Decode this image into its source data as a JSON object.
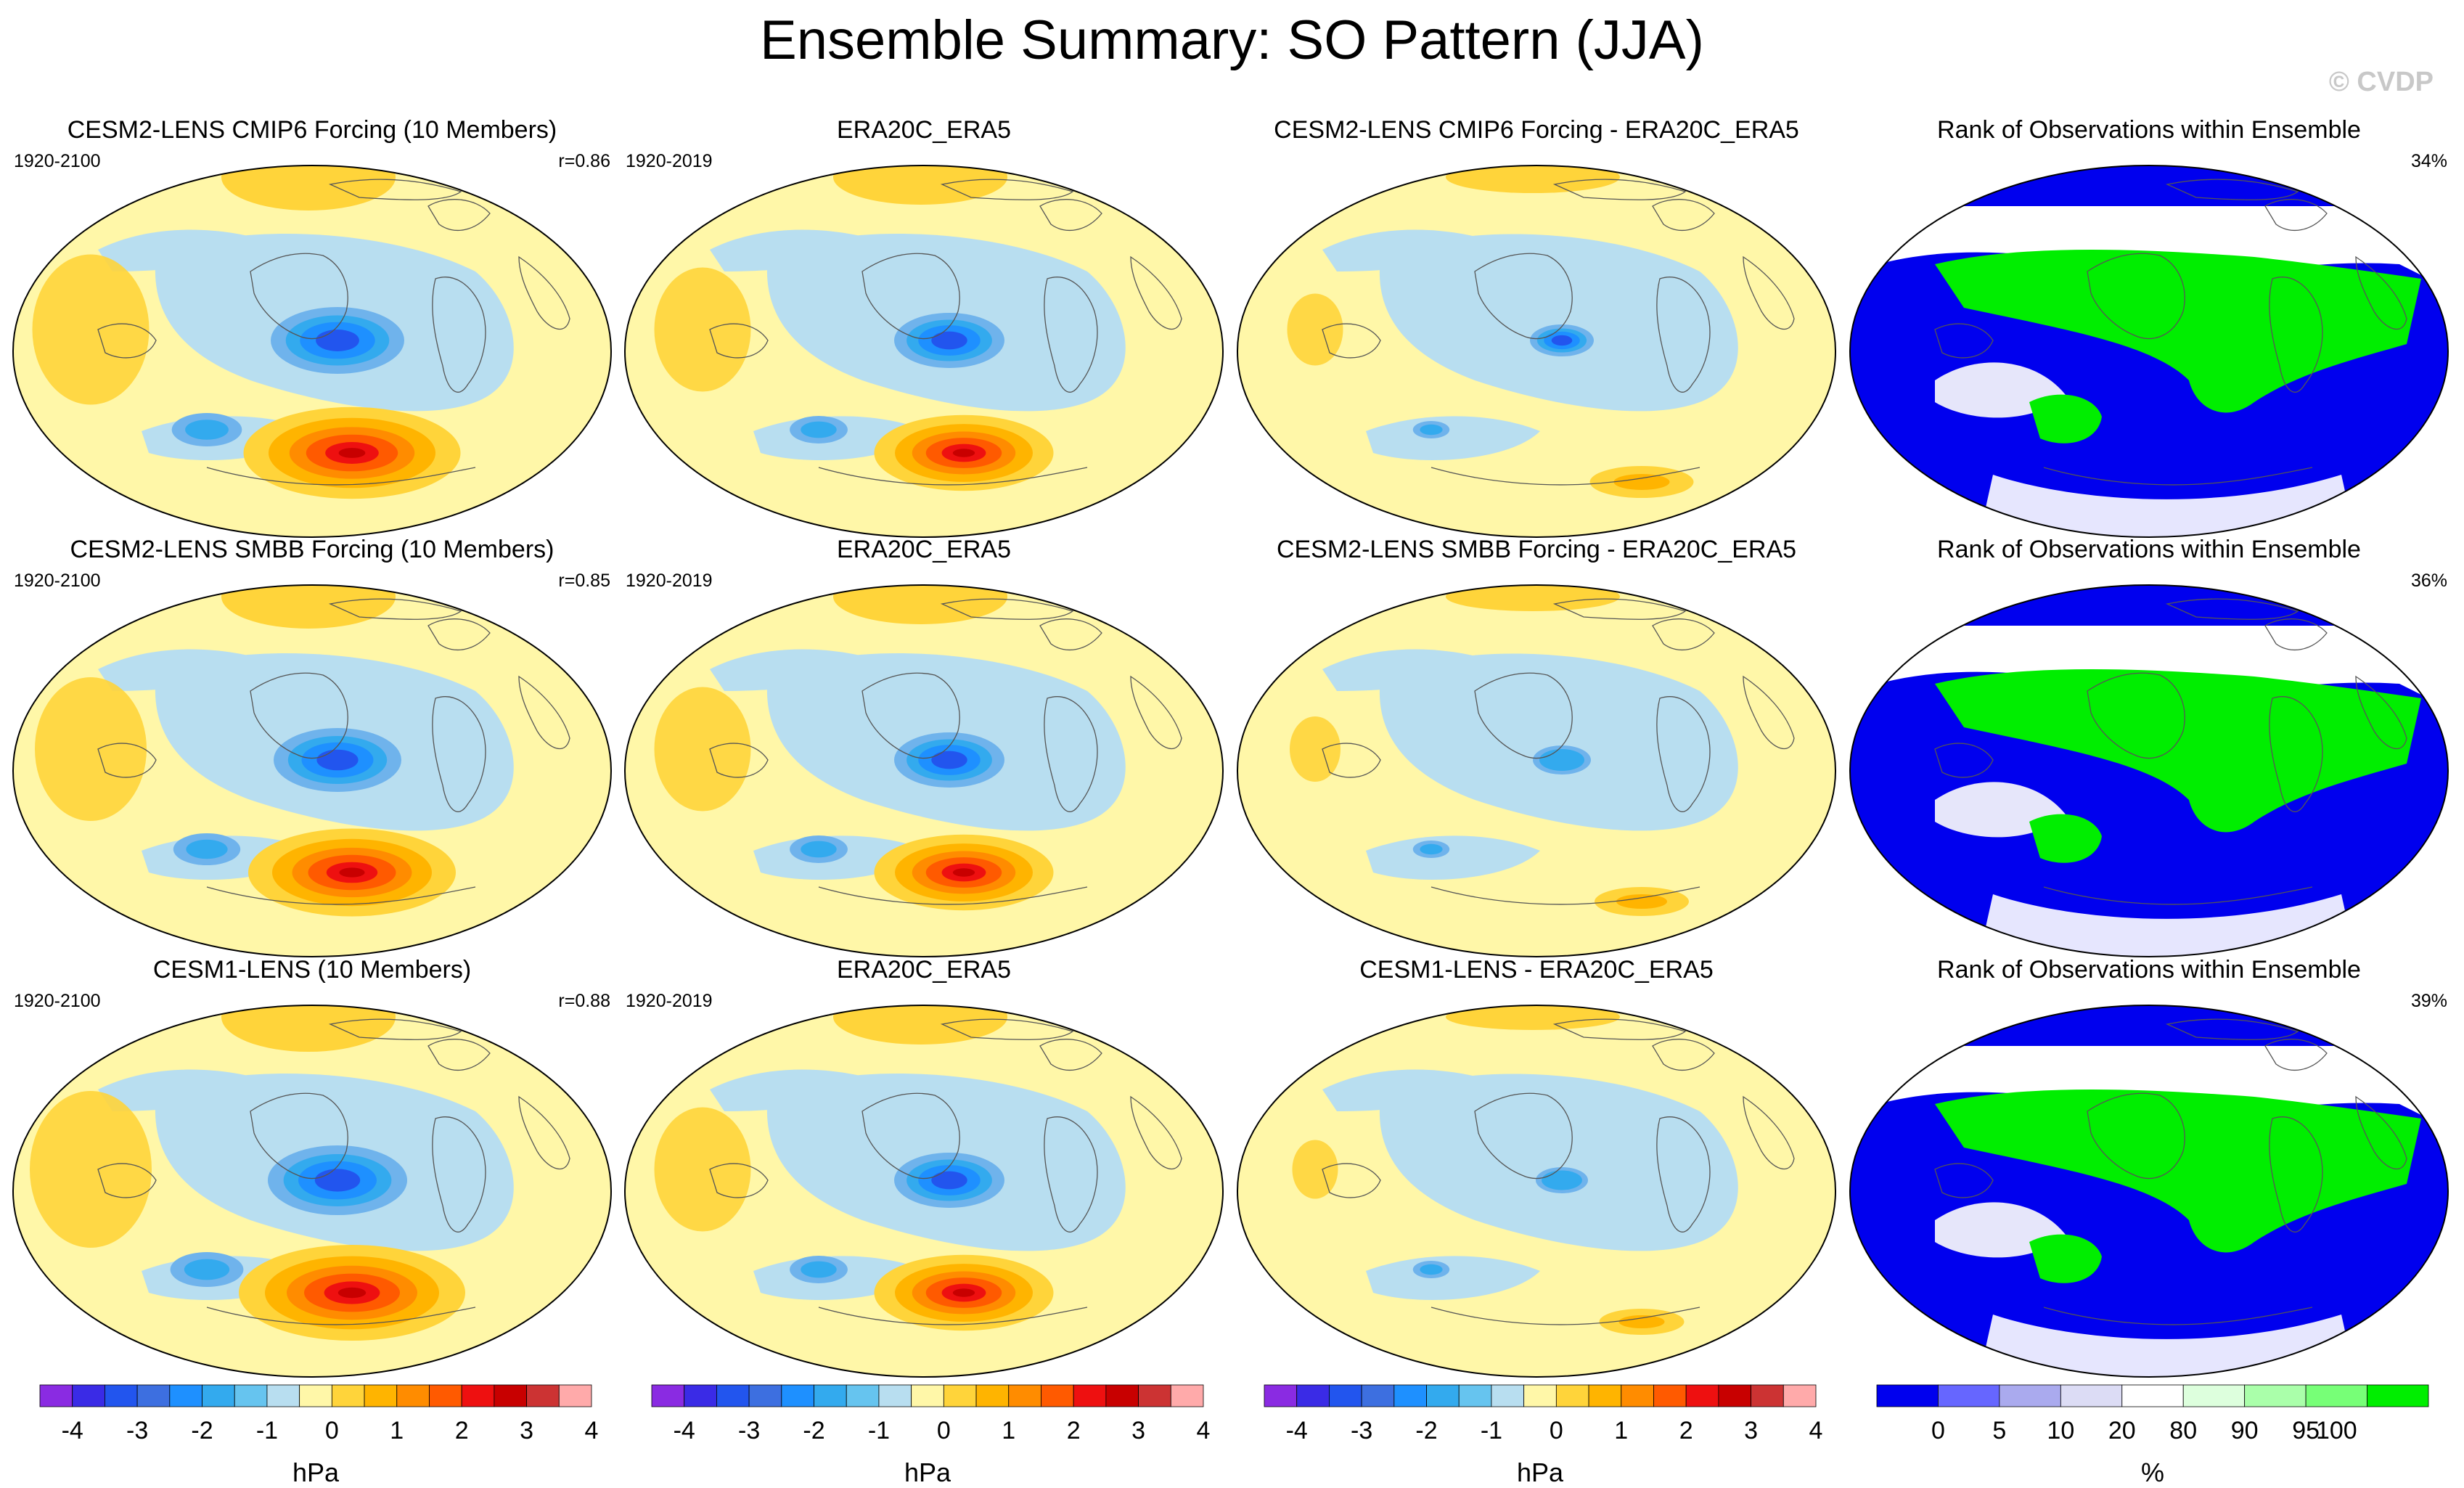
{
  "figure_title": "Ensemble Summary: SO Pattern (JJA)",
  "copyright": "© CVDP",
  "chart_data": {
    "type": "heatmap",
    "variable": "SO pattern (JJA sea level pressure regression)",
    "units": "hPa",
    "rows": [
      {
        "panels": [
          {
            "title": "CESM2-LENS CMIP6 Forcing (10 Members)",
            "left_label": "1920-2100",
            "right_label": "r=0.86",
            "kind": "pattern",
            "amp": 1.15
          },
          {
            "title": "ERA20C_ERA5",
            "left_label": "1920-2019",
            "right_label": "",
            "kind": "pattern",
            "amp": 0.95
          },
          {
            "title": "CESM2-LENS CMIP6 Forcing - ERA20C_ERA5",
            "left_label": "",
            "right_label": "",
            "kind": "difference",
            "amp": 0.55
          },
          {
            "title": "Rank of Observations within Ensemble",
            "left_label": "",
            "right_label": "34%",
            "kind": "rank",
            "amp": 0.34
          }
        ]
      },
      {
        "panels": [
          {
            "title": "CESM2-LENS SMBB Forcing (10 Members)",
            "left_label": "1920-2100",
            "right_label": "r=0.85",
            "kind": "pattern",
            "amp": 1.1
          },
          {
            "title": "ERA20C_ERA5",
            "left_label": "1920-2019",
            "right_label": "",
            "kind": "pattern",
            "amp": 0.95
          },
          {
            "title": "CESM2-LENS SMBB Forcing - ERA20C_ERA5",
            "left_label": "",
            "right_label": "",
            "kind": "difference",
            "amp": 0.5
          },
          {
            "title": "Rank of Observations within Ensemble",
            "left_label": "",
            "right_label": "36%",
            "kind": "rank",
            "amp": 0.36
          }
        ]
      },
      {
        "panels": [
          {
            "title": "CESM1-LENS (10 Members)",
            "left_label": "1920-2100",
            "right_label": "r=0.88",
            "kind": "pattern",
            "amp": 1.2
          },
          {
            "title": "ERA20C_ERA5",
            "left_label": "1920-2019",
            "right_label": "",
            "kind": "pattern",
            "amp": 0.95
          },
          {
            "title": "CESM1-LENS - ERA20C_ERA5",
            "left_label": "",
            "right_label": "",
            "kind": "difference",
            "amp": 0.45
          },
          {
            "title": "Rank of Observations within Ensemble",
            "left_label": "",
            "right_label": "39%",
            "kind": "rank",
            "amp": 0.39
          }
        ]
      }
    ],
    "colorbars": [
      {
        "unit": "hPa",
        "tick_labels": [
          "-4",
          "-3",
          "-2",
          "-1",
          "0",
          "1",
          "2",
          "3",
          "4"
        ],
        "colors": [
          "#8a2be2",
          "#3a2be6",
          "#2255ee",
          "#3d6fe0",
          "#1e90ff",
          "#33aaee",
          "#66c4ef",
          "#b8def0",
          "#fff7a8",
          "#ffd43a",
          "#ffb400",
          "#ff8c00",
          "#ff5a00",
          "#ee1010",
          "#c80000",
          "#cc3333",
          "#ffaaaa"
        ]
      },
      {
        "unit": "hPa",
        "tick_labels": [
          "-4",
          "-3",
          "-2",
          "-1",
          "0",
          "1",
          "2",
          "3",
          "4"
        ],
        "colors": [
          "#8a2be2",
          "#3a2be6",
          "#2255ee",
          "#3d6fe0",
          "#1e90ff",
          "#33aaee",
          "#66c4ef",
          "#b8def0",
          "#fff7a8",
          "#ffd43a",
          "#ffb400",
          "#ff8c00",
          "#ff5a00",
          "#ee1010",
          "#c80000",
          "#cc3333",
          "#ffaaaa"
        ]
      },
      {
        "unit": "hPa",
        "tick_labels": [
          "-4",
          "-3",
          "-2",
          "-1",
          "0",
          "1",
          "2",
          "3",
          "4"
        ],
        "colors": [
          "#8a2be2",
          "#3a2be6",
          "#2255ee",
          "#3d6fe0",
          "#1e90ff",
          "#33aaee",
          "#66c4ef",
          "#b8def0",
          "#fff7a8",
          "#ffd43a",
          "#ffb400",
          "#ff8c00",
          "#ff5a00",
          "#ee1010",
          "#c80000",
          "#cc3333",
          "#ffaaaa"
        ]
      },
      {
        "unit": "%",
        "tick_labels": [
          "0",
          "5",
          "10",
          "20",
          "80",
          "90",
          "95",
          "100"
        ],
        "colors": [
          "#0000ee",
          "#6666ff",
          "#aaaaee",
          "#dcdcf5",
          "#ffffff",
          "#ddffdd",
          "#aaffaa",
          "#77ff77",
          "#00ee00"
        ]
      }
    ]
  }
}
